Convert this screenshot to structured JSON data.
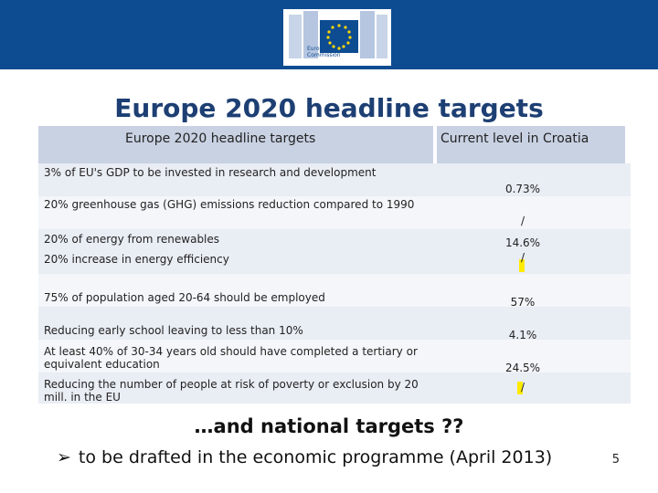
{
  "logo": {
    "org_line1": "European",
    "org_line2": "Commission"
  },
  "title": "Europe 2020 headline targets",
  "table": {
    "col_headers": [
      "Europe 2020 headline targets",
      "Current level in Croatia"
    ],
    "rows": [
      {
        "target": "3% of EU's GDP to be invested in research and development",
        "value": "0.73%"
      },
      {
        "target": "20% greenhouse gas (GHG)  emissions reduction compared to 1990",
        "value": "/"
      },
      {
        "target": "20% of energy from renewables",
        "value": "14.6%"
      },
      {
        "target": "20% increase in energy efficiency",
        "value": "/"
      },
      {
        "target": "75% of population  aged 20-64 should be employed",
        "value": "57%"
      },
      {
        "target": "Reducing early school leaving to less than 10%",
        "value": "4.1%"
      },
      {
        "target": "At least 40% of 30-34 years old should have completed a tertiary or equivalent education",
        "value": "24.5%"
      },
      {
        "target": "Reducing the number of people at risk of  poverty or exclusion by 20 mill. in the EU",
        "value": "/"
      }
    ]
  },
  "subtitle": "…and national targets ??",
  "bullet": "to be drafted in the economic programme (April 2013)",
  "page_number": "5",
  "colors": {
    "banner": "#0e4c92",
    "title": "#1d3f73",
    "header_cell": "#c9d2e3",
    "highlight": "#ffeb00"
  }
}
